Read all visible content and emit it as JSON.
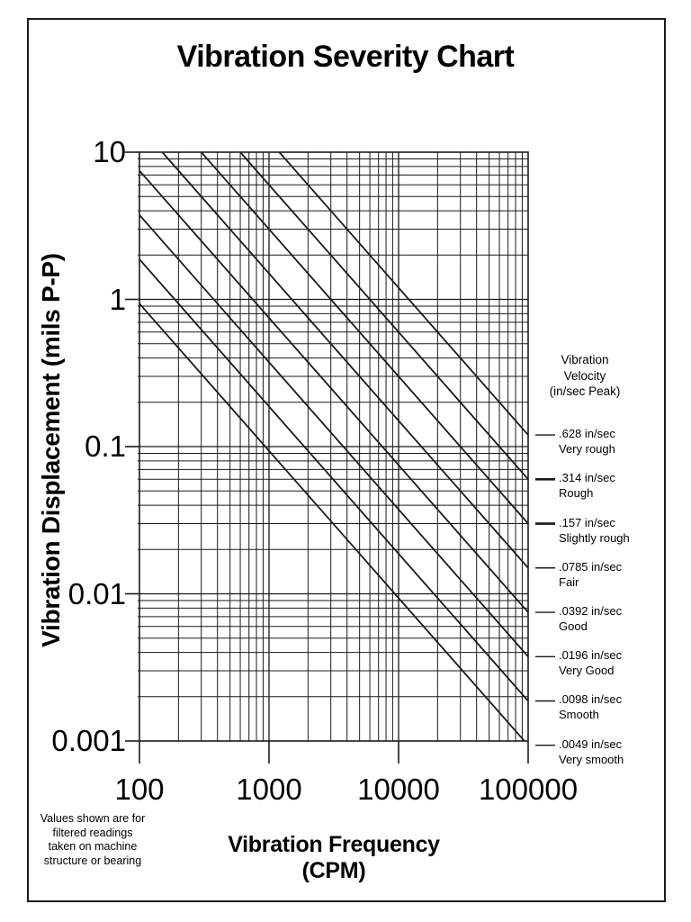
{
  "colors": {
    "ink": "#1a1a1a",
    "text": "#000000",
    "background": "#ffffff"
  },
  "footnote_lines": [
    "Values shown are for",
    "filtered readings",
    "taken on machine",
    "structure or bearing"
  ],
  "chart_data": {
    "type": "line",
    "title": "Vibration Severity Chart",
    "xlabel": "Vibration Frequency (CPM)",
    "ylabel": "Vibration Displacement (mils P-P)",
    "x_scale": "log",
    "y_scale": "log",
    "xlim": [
      100,
      100000
    ],
    "ylim": [
      0.001,
      10
    ],
    "x_tick_labels": [
      "100",
      "1000",
      "10000",
      "100000"
    ],
    "y_tick_labels": [
      "10",
      "1",
      "0.1",
      "0.01",
      "0.001"
    ],
    "grid": {
      "minor": true,
      "minor_multipliers": [
        2,
        3,
        4,
        5,
        6,
        7,
        8,
        9
      ],
      "style": "full log-log graph paper"
    },
    "relation": "displacement_mils_PP = 60000 * velocity_in_sec_peak / (PI * frequency_CPM)",
    "legend": {
      "position": "right",
      "title_lines": [
        "Vibration",
        "Velocity",
        "(in/sec Peak)"
      ],
      "entries": [
        {
          "velocity": 0.628,
          "value_label": ".628 in/sec",
          "severity": "Very rough",
          "bold_dash": false,
          "points": [
            [
              1199.5,
              10
            ],
            [
              100000,
              0.11995
            ]
          ]
        },
        {
          "velocity": 0.314,
          "value_label": ".314 in/sec",
          "severity": "Rough",
          "bold_dash": true,
          "points": [
            [
              599.7,
              10
            ],
            [
              100000,
              0.059975
            ]
          ]
        },
        {
          "velocity": 0.157,
          "value_label": ".157 in/sec",
          "severity": "Slightly rough",
          "bold_dash": true,
          "points": [
            [
              299.9,
              10
            ],
            [
              100000,
              0.029987
            ]
          ]
        },
        {
          "velocity": 0.0785,
          "value_label": ".0785 in/sec",
          "severity": "Fair",
          "bold_dash": false,
          "points": [
            [
              149.9,
              10
            ],
            [
              100000,
              0.014994
            ]
          ]
        },
        {
          "velocity": 0.0392,
          "value_label": ".0392 in/sec",
          "severity": "Good",
          "bold_dash": false,
          "points": [
            [
              100,
              7.4866
            ],
            [
              100000,
              0.0074866
            ]
          ]
        },
        {
          "velocity": 0.0196,
          "value_label": ".0196 in/sec",
          "severity": "Very Good",
          "bold_dash": false,
          "points": [
            [
              100,
              3.7433
            ],
            [
              100000,
              0.0037433
            ]
          ]
        },
        {
          "velocity": 0.0098,
          "value_label": ".0098 in/sec",
          "severity": "Smooth",
          "bold_dash": false,
          "points": [
            [
              100,
              1.8716
            ],
            [
              100000,
              0.0018716
            ]
          ]
        },
        {
          "velocity": 0.0049,
          "value_label": ".0049 in/sec",
          "severity": "Very smooth",
          "bold_dash": false,
          "points": [
            [
              100,
              0.93582
            ],
            [
              93582,
              0.001
            ]
          ]
        }
      ]
    }
  }
}
